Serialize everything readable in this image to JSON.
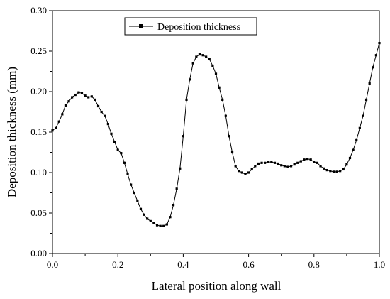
{
  "chart_data": {
    "type": "line",
    "title": "",
    "xlabel": "Lateral position along wall",
    "ylabel": "Deposition thickness (mm)",
    "xlim": [
      0.0,
      1.0
    ],
    "ylim": [
      0.0,
      0.3
    ],
    "x_ticks": [
      "0.0",
      "0.2",
      "0.4",
      "0.6",
      "0.8",
      "1.0"
    ],
    "y_ticks": [
      "0.00",
      "0.05",
      "0.10",
      "0.15",
      "0.20",
      "0.25",
      "0.30"
    ],
    "grid": false,
    "legend": {
      "position": "top-left",
      "entries": [
        "Deposition thickness"
      ]
    },
    "line_color": "#000000",
    "marker": "square",
    "series": [
      {
        "name": "Deposition thickness",
        "x": [
          0.0,
          0.01,
          0.02,
          0.03,
          0.04,
          0.05,
          0.06,
          0.07,
          0.08,
          0.09,
          0.1,
          0.11,
          0.12,
          0.13,
          0.14,
          0.15,
          0.16,
          0.17,
          0.18,
          0.19,
          0.2,
          0.21,
          0.22,
          0.23,
          0.24,
          0.25,
          0.26,
          0.27,
          0.28,
          0.29,
          0.3,
          0.31,
          0.32,
          0.33,
          0.34,
          0.35,
          0.36,
          0.37,
          0.38,
          0.39,
          0.4,
          0.41,
          0.42,
          0.43,
          0.44,
          0.45,
          0.46,
          0.47,
          0.48,
          0.49,
          0.5,
          0.51,
          0.52,
          0.53,
          0.54,
          0.55,
          0.56,
          0.57,
          0.58,
          0.59,
          0.6,
          0.61,
          0.62,
          0.63,
          0.64,
          0.65,
          0.66,
          0.67,
          0.68,
          0.69,
          0.7,
          0.71,
          0.72,
          0.73,
          0.74,
          0.75,
          0.76,
          0.77,
          0.78,
          0.79,
          0.8,
          0.81,
          0.82,
          0.83,
          0.84,
          0.85,
          0.86,
          0.87,
          0.88,
          0.89,
          0.9,
          0.91,
          0.92,
          0.93,
          0.94,
          0.95,
          0.96,
          0.97,
          0.98,
          0.99,
          1.0
        ],
        "values": [
          0.152,
          0.155,
          0.163,
          0.172,
          0.183,
          0.188,
          0.193,
          0.196,
          0.199,
          0.198,
          0.195,
          0.193,
          0.194,
          0.19,
          0.182,
          0.175,
          0.17,
          0.16,
          0.148,
          0.138,
          0.128,
          0.124,
          0.112,
          0.098,
          0.085,
          0.075,
          0.065,
          0.055,
          0.048,
          0.043,
          0.04,
          0.038,
          0.035,
          0.034,
          0.034,
          0.036,
          0.045,
          0.06,
          0.08,
          0.105,
          0.145,
          0.19,
          0.215,
          0.235,
          0.243,
          0.246,
          0.245,
          0.243,
          0.24,
          0.232,
          0.222,
          0.205,
          0.19,
          0.17,
          0.145,
          0.125,
          0.108,
          0.102,
          0.1,
          0.098,
          0.1,
          0.104,
          0.108,
          0.111,
          0.112,
          0.112,
          0.113,
          0.113,
          0.112,
          0.111,
          0.109,
          0.108,
          0.107,
          0.108,
          0.11,
          0.112,
          0.114,
          0.116,
          0.117,
          0.116,
          0.113,
          0.112,
          0.108,
          0.105,
          0.103,
          0.102,
          0.101,
          0.101,
          0.102,
          0.104,
          0.11,
          0.118,
          0.128,
          0.14,
          0.155,
          0.17,
          0.19,
          0.21,
          0.23,
          0.245,
          0.26
        ]
      }
    ]
  }
}
